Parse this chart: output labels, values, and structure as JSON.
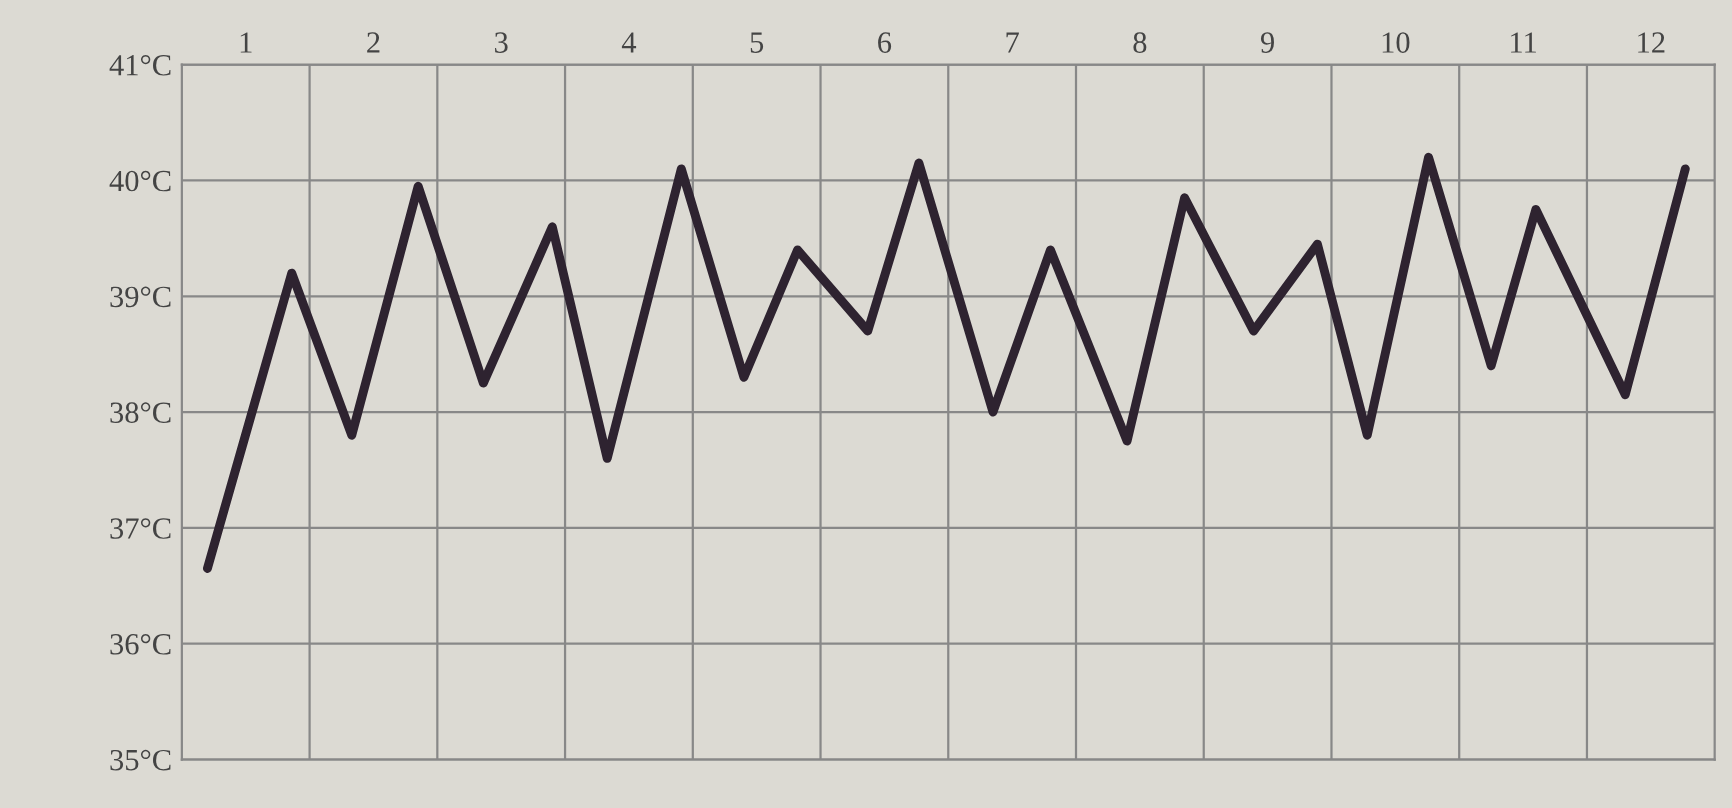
{
  "chart_data": {
    "type": "line",
    "x": [
      0.2,
      0.86,
      1.33,
      1.85,
      2.36,
      2.9,
      3.33,
      3.91,
      4.4,
      4.82,
      5.37,
      5.77,
      6.35,
      6.8,
      7.4,
      7.85,
      8.39,
      8.89,
      9.28,
      9.76,
      10.25,
      10.6,
      11.3,
      11.77
    ],
    "series": [
      {
        "color": "#2e2330",
        "values": [
          36.65,
          39.2,
          37.8,
          39.95,
          38.25,
          39.6,
          37.6,
          40.1,
          38.3,
          39.4,
          38.7,
          40.15,
          38.0,
          39.4,
          37.75,
          39.85,
          38.7,
          39.45,
          37.8,
          40.2,
          38.4,
          39.75,
          38.15,
          40.1
        ]
      }
    ],
    "xlim": [
      0,
      12
    ],
    "xticks": [
      {
        "value": 0.5,
        "label": "1"
      },
      {
        "value": 1.5,
        "label": "2"
      },
      {
        "value": 2.5,
        "label": "3"
      },
      {
        "value": 3.5,
        "label": "4"
      },
      {
        "value": 4.5,
        "label": "5"
      },
      {
        "value": 5.5,
        "label": "6"
      },
      {
        "value": 6.5,
        "label": "7"
      },
      {
        "value": 7.5,
        "label": "8"
      },
      {
        "value": 8.5,
        "label": "9"
      },
      {
        "value": 9.5,
        "label": "10"
      },
      {
        "value": 10.5,
        "label": "11"
      },
      {
        "value": 11.5,
        "label": "12"
      },
      {
        "value": 1,
        "label": null
      },
      {
        "value": 2,
        "label": null
      },
      {
        "value": 3,
        "label": null
      },
      {
        "value": 4,
        "label": null
      },
      {
        "value": 5,
        "label": null
      },
      {
        "value": 6,
        "label": null
      },
      {
        "value": 7,
        "label": null
      },
      {
        "value": 8,
        "label": null
      },
      {
        "value": 9,
        "label": null
      },
      {
        "value": 10,
        "label": null
      },
      {
        "value": 11,
        "label": null
      }
    ],
    "ylim": [
      35,
      41
    ],
    "yticks": [
      {
        "value": 35,
        "label": "35°C"
      },
      {
        "value": 36,
        "label": "36°C"
      },
      {
        "value": 37,
        "label": "37°C"
      },
      {
        "value": 38,
        "label": "38°C"
      },
      {
        "value": 39,
        "label": "39°C"
      },
      {
        "value": 40,
        "label": "40°C"
      },
      {
        "value": 41,
        "label": "41°C"
      }
    ],
    "grid": true,
    "marker": "none",
    "line_style": "solid"
  }
}
